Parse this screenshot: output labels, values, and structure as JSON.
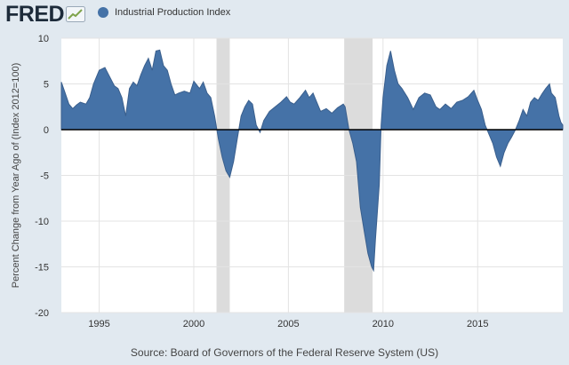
{
  "brand": {
    "logo_text": "FRED"
  },
  "chart_data": {
    "type": "area",
    "title": "",
    "legend": {
      "label": "Industrial Production Index",
      "placement": "top-left"
    },
    "ylabel": "Percent Change from Year Ago of (Index 2012=100)",
    "xlabel": "",
    "source": "Source: Board of Governors of the Federal Reserve System (US)",
    "xlim": [
      1993.0,
      2019.5
    ],
    "ylim": [
      -20,
      10
    ],
    "yticks": [
      -20,
      -15,
      -10,
      -5,
      0,
      5,
      10
    ],
    "xticks": [
      1995,
      2000,
      2005,
      2010,
      2015
    ],
    "grid": true,
    "recessions": [
      [
        2001.2,
        2001.9
      ],
      [
        2007.95,
        2009.45
      ]
    ],
    "series": [
      {
        "name": "Industrial Production Index",
        "color": "#4572a7",
        "points": [
          [
            1993.0,
            5.2
          ],
          [
            1993.2,
            4.0
          ],
          [
            1993.4,
            2.8
          ],
          [
            1993.6,
            2.3
          ],
          [
            1993.8,
            2.7
          ],
          [
            1994.0,
            3.0
          ],
          [
            1994.3,
            2.8
          ],
          [
            1994.5,
            3.5
          ],
          [
            1994.7,
            5.0
          ],
          [
            1995.0,
            6.5
          ],
          [
            1995.3,
            6.8
          ],
          [
            1995.5,
            6.0
          ],
          [
            1995.8,
            4.8
          ],
          [
            1996.0,
            4.5
          ],
          [
            1996.2,
            3.5
          ],
          [
            1996.4,
            1.5
          ],
          [
            1996.6,
            4.5
          ],
          [
            1996.8,
            5.2
          ],
          [
            1997.0,
            4.8
          ],
          [
            1997.2,
            6.0
          ],
          [
            1997.4,
            7.0
          ],
          [
            1997.6,
            7.8
          ],
          [
            1997.8,
            6.5
          ],
          [
            1998.0,
            8.6
          ],
          [
            1998.2,
            8.7
          ],
          [
            1998.4,
            7.0
          ],
          [
            1998.6,
            6.5
          ],
          [
            1998.8,
            5.0
          ],
          [
            1999.0,
            3.8
          ],
          [
            1999.2,
            4.0
          ],
          [
            1999.5,
            4.2
          ],
          [
            1999.8,
            4.0
          ],
          [
            2000.0,
            5.3
          ],
          [
            2000.3,
            4.5
          ],
          [
            2000.5,
            5.2
          ],
          [
            2000.7,
            4.0
          ],
          [
            2000.9,
            3.5
          ],
          [
            2001.1,
            1.5
          ],
          [
            2001.3,
            -1.0
          ],
          [
            2001.5,
            -3.0
          ],
          [
            2001.7,
            -4.5
          ],
          [
            2001.9,
            -5.2
          ],
          [
            2002.1,
            -3.5
          ],
          [
            2002.3,
            -1.0
          ],
          [
            2002.5,
            1.5
          ],
          [
            2002.7,
            2.5
          ],
          [
            2002.9,
            3.2
          ],
          [
            2003.1,
            2.8
          ],
          [
            2003.3,
            0.5
          ],
          [
            2003.5,
            -0.3
          ],
          [
            2003.7,
            1.0
          ],
          [
            2004.0,
            2.0
          ],
          [
            2004.3,
            2.5
          ],
          [
            2004.6,
            3.0
          ],
          [
            2004.9,
            3.6
          ],
          [
            2005.1,
            3.0
          ],
          [
            2005.3,
            2.8
          ],
          [
            2005.6,
            3.5
          ],
          [
            2005.9,
            4.3
          ],
          [
            2006.1,
            3.5
          ],
          [
            2006.3,
            4.0
          ],
          [
            2006.5,
            3.0
          ],
          [
            2006.7,
            2.0
          ],
          [
            2007.0,
            2.3
          ],
          [
            2007.3,
            1.8
          ],
          [
            2007.6,
            2.4
          ],
          [
            2007.9,
            2.8
          ],
          [
            2008.0,
            2.5
          ],
          [
            2008.2,
            0.0
          ],
          [
            2008.4,
            -1.5
          ],
          [
            2008.6,
            -3.5
          ],
          [
            2008.8,
            -8.5
          ],
          [
            2009.0,
            -11.0
          ],
          [
            2009.2,
            -13.5
          ],
          [
            2009.4,
            -15.0
          ],
          [
            2009.5,
            -15.4
          ],
          [
            2009.6,
            -12.0
          ],
          [
            2009.8,
            -6.0
          ],
          [
            2009.9,
            0.5
          ],
          [
            2010.0,
            3.5
          ],
          [
            2010.2,
            7.0
          ],
          [
            2010.4,
            8.6
          ],
          [
            2010.6,
            6.5
          ],
          [
            2010.8,
            5.0
          ],
          [
            2011.0,
            4.5
          ],
          [
            2011.3,
            3.5
          ],
          [
            2011.6,
            2.2
          ],
          [
            2011.9,
            3.5
          ],
          [
            2012.2,
            4.0
          ],
          [
            2012.5,
            3.8
          ],
          [
            2012.8,
            2.5
          ],
          [
            2013.0,
            2.2
          ],
          [
            2013.3,
            2.8
          ],
          [
            2013.6,
            2.3
          ],
          [
            2013.9,
            3.0
          ],
          [
            2014.2,
            3.2
          ],
          [
            2014.5,
            3.6
          ],
          [
            2014.8,
            4.3
          ],
          [
            2015.0,
            3.2
          ],
          [
            2015.2,
            2.2
          ],
          [
            2015.4,
            0.5
          ],
          [
            2015.6,
            -0.5
          ],
          [
            2015.8,
            -1.5
          ],
          [
            2016.0,
            -3.0
          ],
          [
            2016.2,
            -4.0
          ],
          [
            2016.4,
            -2.5
          ],
          [
            2016.6,
            -1.5
          ],
          [
            2016.8,
            -0.8
          ],
          [
            2017.0,
            0.0
          ],
          [
            2017.2,
            1.0
          ],
          [
            2017.4,
            2.2
          ],
          [
            2017.6,
            1.5
          ],
          [
            2017.8,
            3.0
          ],
          [
            2018.0,
            3.5
          ],
          [
            2018.2,
            3.2
          ],
          [
            2018.4,
            3.9
          ],
          [
            2018.6,
            4.5
          ],
          [
            2018.8,
            5.0
          ],
          [
            2018.9,
            4.0
          ],
          [
            2019.1,
            3.5
          ],
          [
            2019.3,
            1.5
          ],
          [
            2019.4,
            0.8
          ],
          [
            2019.5,
            0.5
          ]
        ]
      }
    ],
    "colors": {
      "plot_background": "#ffffff",
      "page_background": "#e1e9f0",
      "gridline": "#e3e3e3",
      "recession_band": "#dcdcdc",
      "zero_line": "#000000",
      "area_fill": "#4572a7",
      "area_stroke": "#3a5f8d"
    }
  }
}
